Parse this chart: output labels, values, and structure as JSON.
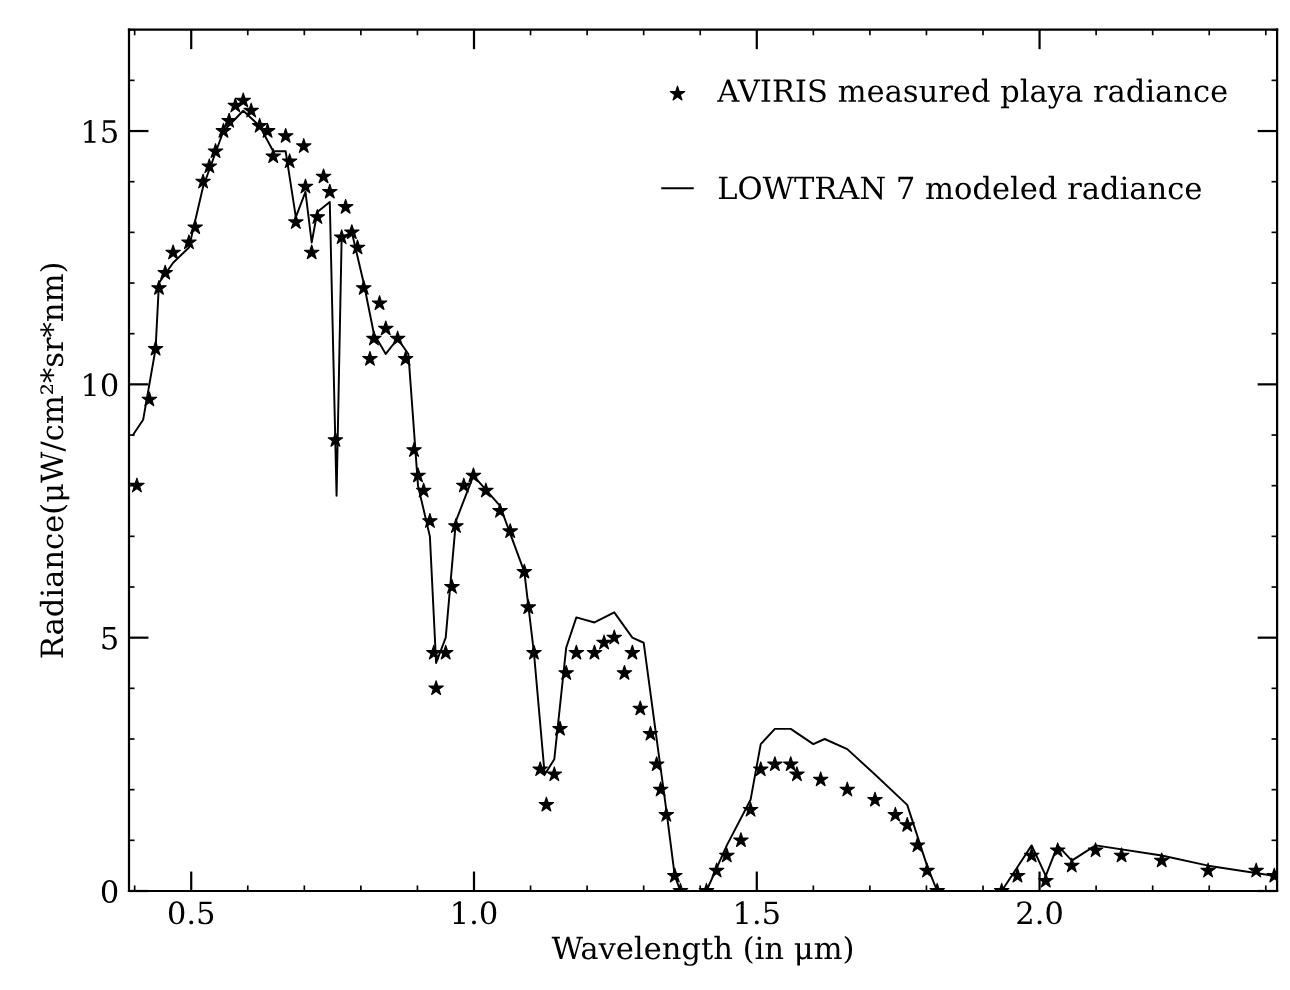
{
  "chart_data": {
    "type": "scatter",
    "xlabel": "Wavelength (in μm)",
    "ylabel": "Radiance(μW/cm²*sr*nm)",
    "xlim": [
      0.39,
      2.42
    ],
    "ylim": [
      0,
      17
    ],
    "xticks": [
      {
        "value": 0.5,
        "label": "0.5"
      },
      {
        "value": 1.0,
        "label": "1.0"
      },
      {
        "value": 1.5,
        "label": "1.5"
      },
      {
        "value": 2.0,
        "label": "2.0"
      }
    ],
    "yticks": [
      0,
      5,
      10,
      15
    ],
    "grid": false,
    "legend": "top right",
    "series": [
      {
        "name": "AVIRIS measured playa radiance",
        "marker": "star",
        "color": "#000000",
        "x": [
          0.404,
          0.426,
          0.437,
          0.443,
          0.454,
          0.468,
          0.496,
          0.507,
          0.521,
          0.532,
          0.543,
          0.557,
          0.567,
          0.578,
          0.592,
          0.606,
          0.621,
          0.635,
          0.645,
          0.667,
          0.674,
          0.685,
          0.699,
          0.702,
          0.713,
          0.723,
          0.734,
          0.745,
          0.755,
          0.766,
          0.773,
          0.784,
          0.794,
          0.805,
          0.816,
          0.823,
          0.833,
          0.844,
          0.865,
          0.879,
          0.894,
          0.901,
          0.911,
          0.922,
          0.929,
          0.933,
          0.95,
          0.961,
          0.968,
          0.982,
          0.999,
          1.021,
          1.046,
          1.064,
          1.089,
          1.096,
          1.106,
          1.117,
          1.128,
          1.142,
          1.152,
          1.163,
          1.181,
          1.213,
          1.23,
          1.248,
          1.266,
          1.28,
          1.294,
          1.312,
          1.323,
          1.33,
          1.34,
          1.355,
          1.365,
          1.411,
          1.429,
          1.447,
          1.472,
          1.489,
          1.507,
          1.532,
          1.56,
          1.571,
          1.613,
          1.66,
          1.709,
          1.745,
          1.766,
          1.784,
          1.801,
          1.819,
          1.933,
          1.961,
          1.986,
          2.011,
          2.032,
          2.057,
          2.099,
          2.145,
          2.216,
          2.298,
          2.383,
          2.415
        ],
        "values": [
          8.0,
          9.7,
          10.7,
          11.9,
          12.2,
          12.6,
          12.8,
          13.1,
          14.0,
          14.3,
          14.6,
          15.0,
          15.2,
          15.5,
          15.6,
          15.4,
          15.1,
          15.0,
          14.5,
          14.9,
          14.4,
          13.2,
          14.7,
          13.9,
          12.6,
          13.3,
          14.1,
          13.8,
          8.9,
          12.9,
          13.5,
          13.0,
          12.7,
          11.9,
          10.5,
          10.9,
          11.6,
          11.1,
          10.9,
          10.5,
          8.7,
          8.2,
          7.9,
          7.3,
          4.7,
          4.0,
          4.7,
          6.0,
          7.2,
          8.0,
          8.2,
          7.9,
          7.5,
          7.1,
          6.3,
          5.6,
          4.7,
          2.4,
          1.7,
          2.3,
          3.2,
          4.3,
          4.7,
          4.7,
          4.9,
          5.0,
          4.3,
          4.7,
          3.6,
          3.1,
          2.5,
          2.0,
          1.5,
          0.3,
          0.0,
          0.0,
          0.4,
          0.7,
          1.0,
          1.6,
          2.4,
          2.5,
          2.5,
          2.3,
          2.2,
          2.0,
          1.8,
          1.5,
          1.3,
          0.9,
          0.4,
          0.0,
          0.0,
          0.3,
          0.7,
          0.2,
          0.8,
          0.5,
          0.8,
          0.7,
          0.6,
          0.4,
          0.4,
          0.3
        ]
      },
      {
        "name": "LOWTRAN 7 modeled radiance",
        "type": "line",
        "line_style": "solid",
        "color": "#000000",
        "x": [
          0.397,
          0.415,
          0.437,
          0.443,
          0.468,
          0.496,
          0.521,
          0.557,
          0.592,
          0.621,
          0.645,
          0.667,
          0.685,
          0.702,
          0.713,
          0.723,
          0.745,
          0.757,
          0.766,
          0.784,
          0.805,
          0.823,
          0.844,
          0.865,
          0.884,
          0.901,
          0.922,
          0.933,
          0.95,
          0.968,
          0.999,
          1.046,
          1.089,
          1.106,
          1.125,
          1.142,
          1.163,
          1.181,
          1.213,
          1.248,
          1.28,
          1.3,
          1.323,
          1.34,
          1.355,
          1.365,
          1.411,
          1.447,
          1.489,
          1.507,
          1.532,
          1.56,
          1.6,
          1.62,
          1.66,
          1.709,
          1.766,
          1.801,
          1.819,
          1.933,
          1.986,
          2.011,
          2.032,
          2.057,
          2.099,
          2.216,
          2.298,
          2.415
        ],
        "values": [
          9.0,
          9.3,
          10.7,
          12.0,
          12.4,
          12.7,
          13.9,
          15.0,
          15.4,
          15.1,
          14.6,
          14.6,
          13.3,
          13.8,
          12.8,
          13.4,
          13.6,
          7.8,
          12.9,
          13.0,
          12.0,
          11.0,
          10.6,
          10.9,
          10.6,
          8.0,
          7.0,
          4.5,
          5.0,
          7.3,
          8.2,
          7.6,
          6.3,
          4.7,
          2.3,
          2.6,
          4.8,
          5.4,
          5.3,
          5.5,
          5.0,
          4.9,
          3.0,
          1.6,
          0.3,
          0.0,
          0.0,
          0.9,
          1.8,
          2.9,
          3.2,
          3.2,
          2.9,
          3.0,
          2.8,
          2.3,
          1.7,
          0.5,
          0.0,
          0.0,
          0.9,
          0.3,
          0.9,
          0.6,
          0.9,
          0.7,
          0.5,
          0.3
        ]
      }
    ]
  }
}
